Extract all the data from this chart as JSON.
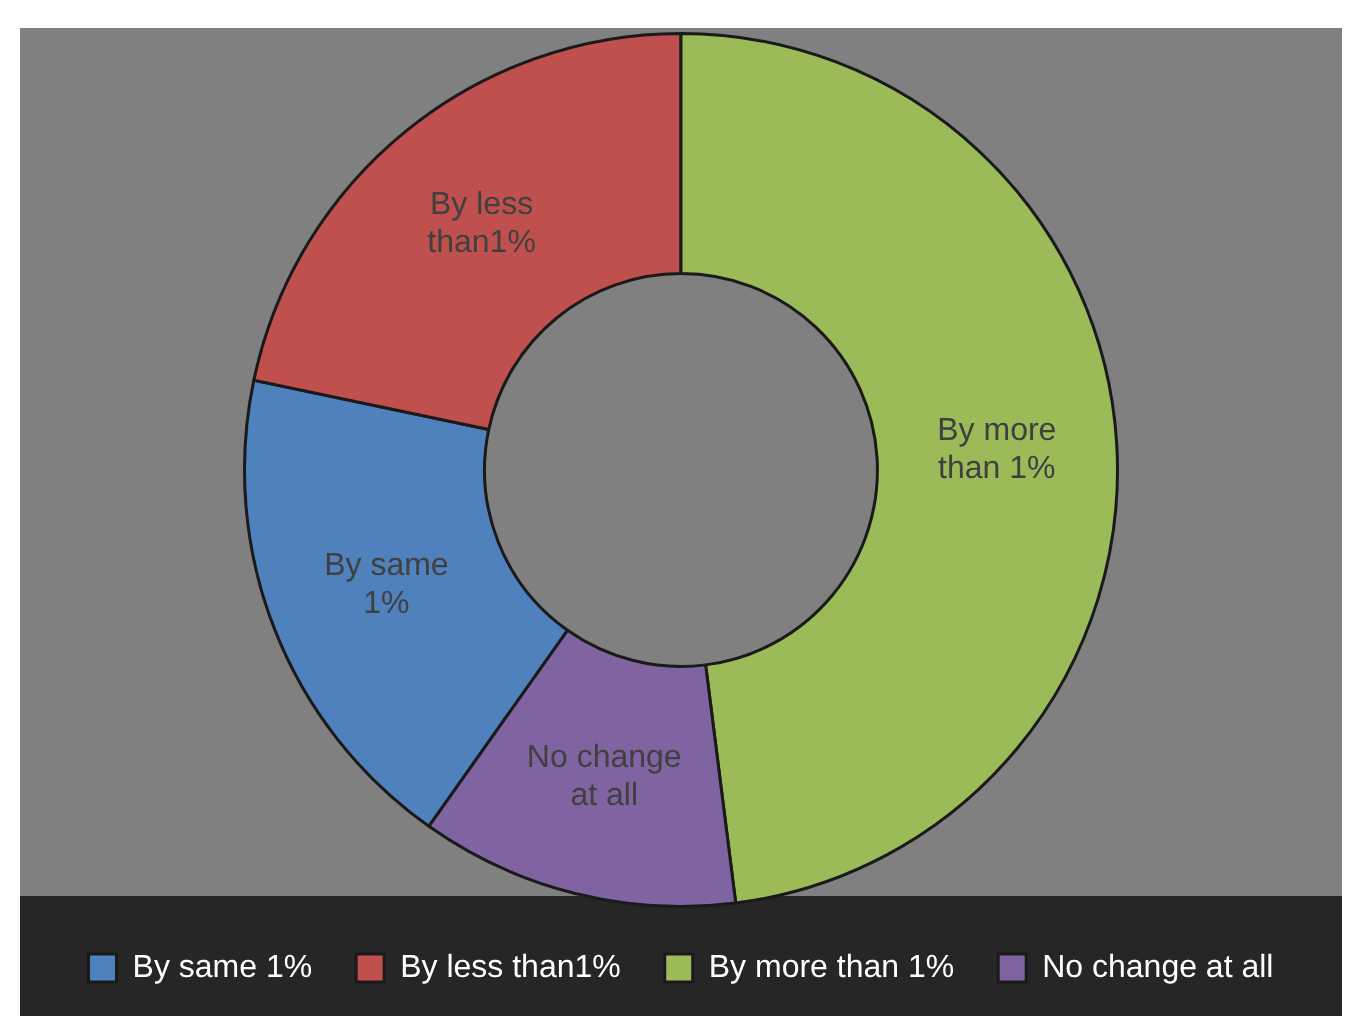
{
  "chart_data": {
    "type": "donut",
    "categories": [
      "By same 1%",
      "By less than1%",
      "By more than 1%",
      "No change at all"
    ],
    "values": [
      18.5,
      21.7,
      48,
      11.8
    ],
    "colors": [
      "#4f81bd",
      "#c0504d",
      "#9bbb59",
      "#8064a2"
    ],
    "legend": "bottom"
  }
}
